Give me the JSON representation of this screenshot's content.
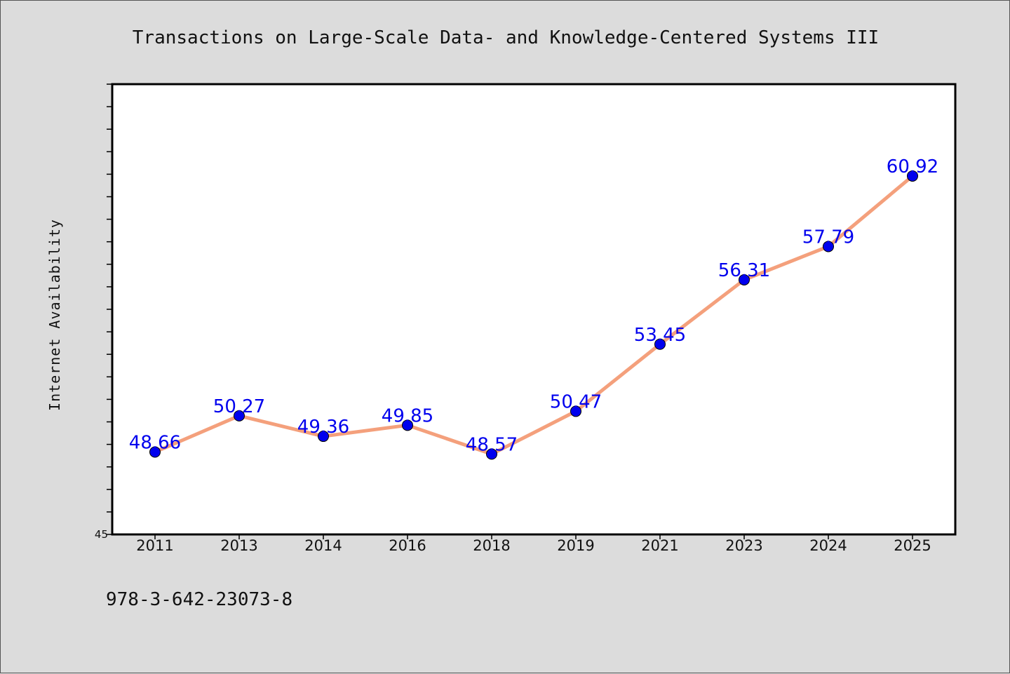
{
  "chart_data": {
    "type": "line",
    "title": "Transactions on Large-Scale Data- and Knowledge-Centered Systems III",
    "xlabel": "",
    "ylabel": "Internet Availability",
    "categories": [
      "2011",
      "2013",
      "2014",
      "2016",
      "2018",
      "2019",
      "2021",
      "2023",
      "2024",
      "2025"
    ],
    "series": [
      {
        "values": [
          48.66,
          50.27,
          49.36,
          49.85,
          48.57,
          50.47,
          53.45,
          56.31,
          57.79,
          60.92
        ],
        "data_labels": [
          "48.66",
          "50.27",
          "49.36",
          "49.85",
          "48.57",
          "50.47",
          "53.45",
          "56.31",
          "57.79",
          "60.92"
        ],
        "line_color": "#f4a07c",
        "marker_color": "#0000ee"
      }
    ],
    "ylim": [
      45,
      65
    ],
    "ytick_labels": [
      "45"
    ],
    "grid": false,
    "legend": "none"
  },
  "footer": {
    "isbn": "978-3-642-23073-8"
  },
  "colors": {
    "background": "#dcdcdc",
    "plot_background": "#ffffff",
    "line": "#f4a07c",
    "marker": "#0000ee",
    "data_label": "#0000ee"
  }
}
